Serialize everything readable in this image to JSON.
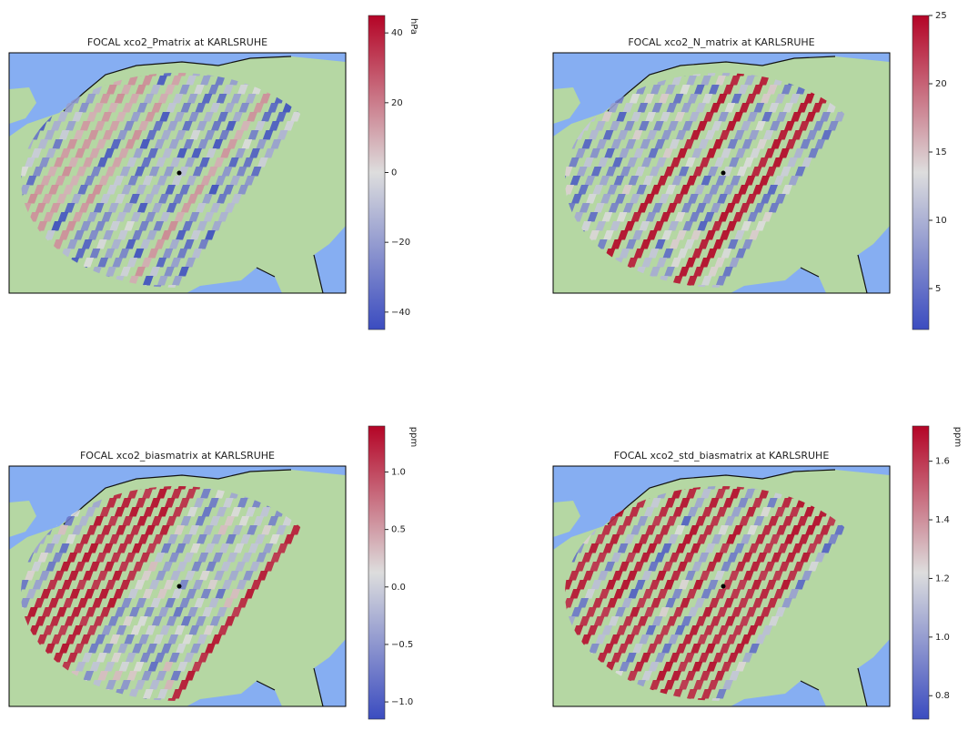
{
  "panels": [
    {
      "title": "FOCAL xco2_Pmatrix at KARLSRUHE",
      "colorbar": {
        "label": "hPa",
        "lim": [
          -45,
          45
        ],
        "ticks": [
          {
            "value": -40,
            "label": "−40"
          },
          {
            "value": -20,
            "label": "−20"
          },
          0,
          20,
          40
        ]
      }
    },
    {
      "title": "FOCAL xco2_N_matrix at KARLSRUHE",
      "colorbar": {
        "lim": [
          2,
          25
        ],
        "ticks": [
          5,
          10,
          15,
          20,
          25
        ]
      }
    },
    {
      "title": "FOCAL xco2_biasmatrix at KARLSRUHE",
      "colorbar": {
        "label": "ppm",
        "lim": [
          -1.15,
          1.4
        ],
        "ticks": [
          {
            "value": -1.0,
            "label": "−1.0"
          },
          {
            "value": -0.5,
            "label": "−0.5"
          },
          {
            "value": 0.0,
            "label": "0.0"
          },
          0.5,
          {
            "value": 1.0,
            "label": "1.0"
          }
        ]
      }
    },
    {
      "title": "FOCAL xco2_std_biasmatrix at KARLSRUHE",
      "colorbar": {
        "label": "ppm",
        "lim": [
          0.72,
          1.72
        ],
        "ticks": [
          0.8,
          {
            "value": 1.0,
            "label": "1.0"
          },
          1.2,
          1.4,
          1.6
        ]
      }
    }
  ]
}
